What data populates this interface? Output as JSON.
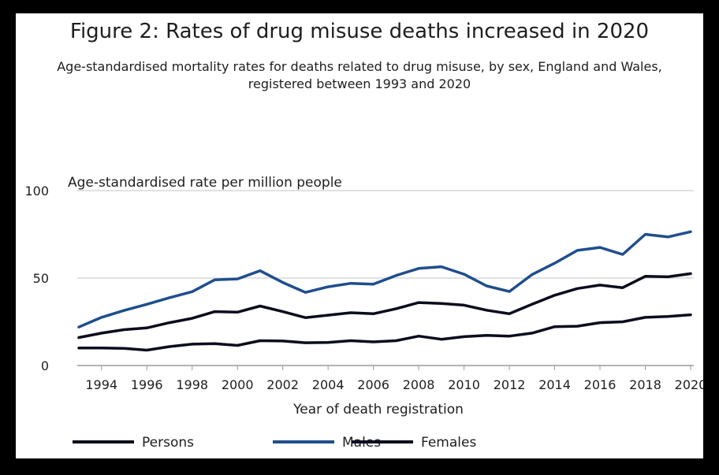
{
  "chart_data": {
    "type": "line",
    "title": "Figure 2: Rates of drug misuse deaths increased in 2020",
    "subtitle": "Age-standardised mortality rates for deaths related to drug misuse, by sex, England and Wales, registered between 1993 and 2020",
    "ylabel": "Age-standardised rate per million people",
    "xlabel": "Year of death registration",
    "ylim": [
      0,
      100
    ],
    "xlim": [
      1993,
      2020
    ],
    "yticks": [
      0,
      50,
      100
    ],
    "xticks": [
      1994,
      1996,
      1998,
      2000,
      2002,
      2004,
      2006,
      2008,
      2010,
      2012,
      2014,
      2016,
      2018,
      2020
    ],
    "grid": true,
    "legend_position": "bottom",
    "x": [
      1993,
      1994,
      1995,
      1996,
      1997,
      1998,
      1999,
      2000,
      2001,
      2002,
      2003,
      2004,
      2005,
      2006,
      2007,
      2008,
      2009,
      2010,
      2011,
      2012,
      2013,
      2014,
      2015,
      2016,
      2017,
      2018,
      2019,
      2020
    ],
    "series": [
      {
        "name": "Persons",
        "color": "#0b0c1e",
        "values": [
          16,
          18.5,
          20.5,
          21.5,
          24.5,
          27,
          30.8,
          30.5,
          34,
          30.8,
          27.4,
          28.8,
          30.2,
          29.6,
          32.5,
          36,
          35.5,
          34.5,
          31.6,
          29.6,
          35,
          40.2,
          44,
          46,
          44.5,
          51,
          50.7,
          52.5
        ]
      },
      {
        "name": "Males",
        "color": "#1f4e8c",
        "values": [
          22,
          27.5,
          31.5,
          35,
          38.8,
          42.2,
          49,
          49.5,
          54.2,
          47.5,
          41.8,
          45,
          47,
          46.5,
          51.5,
          55.5,
          56.5,
          52.2,
          45.5,
          42.3,
          52,
          58.5,
          65.8,
          67.5,
          63.5,
          75,
          73.5,
          76.5
        ]
      },
      {
        "name": "Females",
        "color": "#0b0c1e",
        "values": [
          10,
          10,
          9.8,
          8.8,
          10.8,
          12.2,
          12.5,
          11.5,
          14.2,
          14,
          13,
          13.2,
          14.2,
          13.5,
          14.2,
          16.8,
          15,
          16.5,
          17.2,
          16.8,
          18.5,
          22.2,
          22.5,
          24.5,
          25,
          27.5,
          28,
          29
        ]
      }
    ]
  }
}
